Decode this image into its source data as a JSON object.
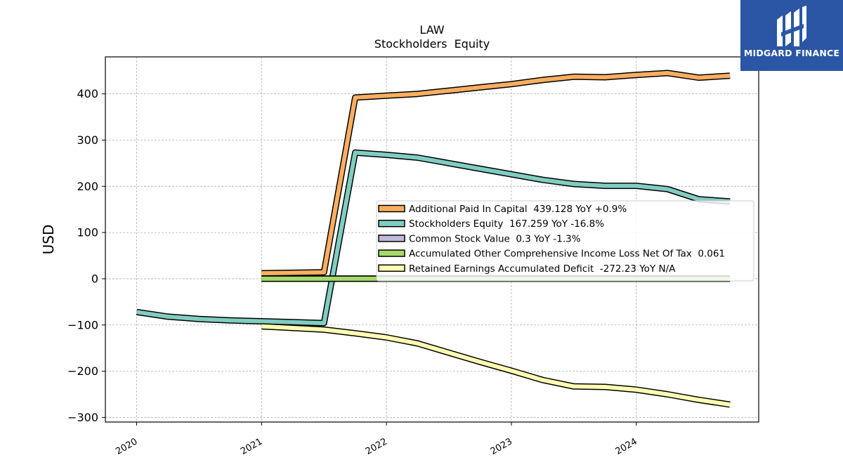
{
  "logo": {
    "text": "MIDGARD FINANCE",
    "icon": "midgard-logo-icon",
    "bg": "#2a56a5"
  },
  "chart_data": {
    "type": "line",
    "title": "LAW",
    "subtitle": "Stockholders  Equity",
    "ylabel": "USD",
    "xlabel": "",
    "ylim": [
      -310,
      480
    ],
    "xlim": [
      2019.75,
      2024.98
    ],
    "yticks": [
      -300,
      -200,
      -100,
      0,
      100,
      200,
      300,
      400
    ],
    "ytick_labels": [
      "−300",
      "−200",
      "−100",
      "0",
      "100",
      "200",
      "300",
      "400"
    ],
    "xticks": [
      2020,
      2021,
      2022,
      2023,
      2024
    ],
    "xtick_labels": [
      "2020",
      "2021",
      "2022",
      "2023",
      "2024"
    ],
    "grid": true,
    "legend_position": "center-right",
    "series": [
      {
        "name": "Additional Paid In Capital  439.128 YoY +0.9%",
        "color": "#fdae61",
        "x": [
          2021.0,
          2021.5,
          2021.75,
          2022.0,
          2022.25,
          2022.5,
          2022.75,
          2023.0,
          2023.25,
          2023.5,
          2023.75,
          2024.0,
          2024.25,
          2024.5,
          2024.75
        ],
        "y": [
          12,
          14,
          392,
          396,
          400,
          407,
          414,
          421,
          430,
          437,
          436,
          441,
          445,
          435,
          439.128
        ]
      },
      {
        "name": "Stockholders Equity  167.259 YoY -16.8%",
        "color": "#80cdc1",
        "x": [
          2020.0,
          2020.25,
          2020.5,
          2020.75,
          2021.0,
          2021.25,
          2021.5,
          2021.75,
          2022.0,
          2022.25,
          2022.5,
          2022.75,
          2023.0,
          2023.25,
          2023.5,
          2023.75,
          2024.0,
          2024.25,
          2024.5,
          2024.75
        ],
        "y": [
          -72,
          -82,
          -87,
          -90,
          -92,
          -94,
          -96,
          273,
          268,
          262,
          250,
          238,
          226,
          214,
          205,
          201,
          201,
          194,
          172,
          167.259
        ]
      },
      {
        "name": "Common Stock Value  0.3 YoY -1.3%",
        "color": "#bebada",
        "x": [
          2021.0,
          2021.25,
          2021.5,
          2021.75,
          2022.0,
          2022.5,
          2023.0,
          2023.5,
          2024.0,
          2024.5,
          2024.75
        ],
        "y": [
          0.3,
          0.3,
          0.3,
          0.3,
          0.3,
          0.3,
          0.3,
          0.3,
          0.3,
          0.3,
          0.3
        ]
      },
      {
        "name": "Accumulated Other Comprehensive Income Loss Net Of Tax  0.061",
        "color": "#a6d96a",
        "x": [
          2021.0,
          2024.75
        ],
        "y": [
          0.061,
          0.061
        ]
      },
      {
        "name": "Retained Earnings Accumulated Deficit  -272.23 YoY N/A",
        "color": "#ffffb3",
        "x": [
          2021.0,
          2021.5,
          2021.75,
          2022.0,
          2022.25,
          2022.5,
          2022.75,
          2023.0,
          2023.25,
          2023.5,
          2023.75,
          2024.0,
          2024.25,
          2024.5,
          2024.75
        ],
        "y": [
          -103,
          -110,
          -118,
          -127,
          -140,
          -160,
          -180,
          -199,
          -219,
          -233,
          -234,
          -240,
          -250,
          -262,
          -272.23
        ]
      }
    ]
  }
}
